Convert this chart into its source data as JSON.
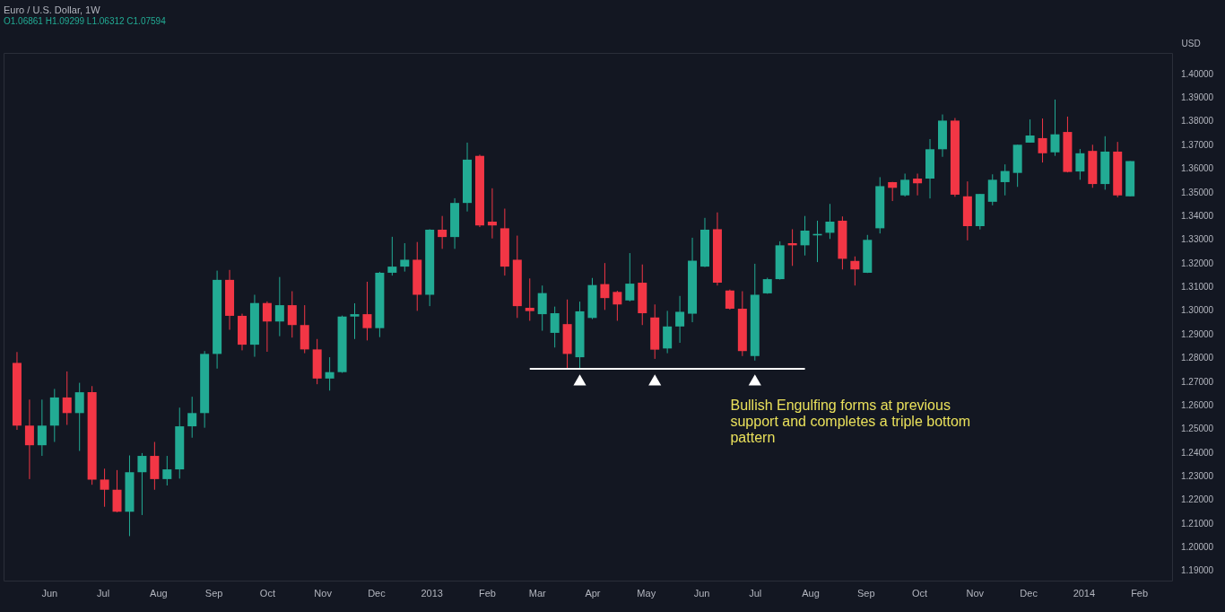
{
  "chart_data": {
    "type": "candlestick",
    "title": "Euro / U.S. Dollar, 1W",
    "subtitle": "O1.06861 H1.09299 L1.06312 C1.07594",
    "ylabel": "USD",
    "x": [
      "2012-05-14",
      "2012-05-21",
      "2012-05-28",
      "2012-06-04",
      "2012-06-11",
      "2012-06-18",
      "2012-06-25",
      "2012-07-02",
      "2012-07-09",
      "2012-07-16",
      "2012-07-23",
      "2012-07-30",
      "2012-08-06",
      "2012-08-13",
      "2012-08-20",
      "2012-08-27",
      "2012-09-03",
      "2012-09-10",
      "2012-09-17",
      "2012-09-24",
      "2012-10-01",
      "2012-10-08",
      "2012-10-15",
      "2012-10-22",
      "2012-10-29",
      "2012-11-05",
      "2012-11-12",
      "2012-11-19",
      "2012-11-26",
      "2012-12-03",
      "2012-12-10",
      "2012-12-17",
      "2012-12-24",
      "2012-12-31",
      "2013-01-07",
      "2013-01-14",
      "2013-01-21",
      "2013-01-28",
      "2013-02-04",
      "2013-02-11",
      "2013-02-18",
      "2013-02-25",
      "2013-03-04",
      "2013-03-11",
      "2013-03-18",
      "2013-03-25",
      "2013-04-01",
      "2013-04-08",
      "2013-04-15",
      "2013-04-22",
      "2013-04-29",
      "2013-05-06",
      "2013-05-13",
      "2013-05-20",
      "2013-05-27",
      "2013-06-03",
      "2013-06-10",
      "2013-06-17",
      "2013-06-24",
      "2013-07-01",
      "2013-07-08",
      "2013-07-15",
      "2013-07-22",
      "2013-07-29",
      "2013-08-05",
      "2013-08-12",
      "2013-08-19",
      "2013-08-26",
      "2013-09-02",
      "2013-09-09",
      "2013-09-16",
      "2013-09-23",
      "2013-09-30",
      "2013-10-07",
      "2013-10-14",
      "2013-10-21",
      "2013-10-28",
      "2013-11-04",
      "2013-11-11",
      "2013-11-18",
      "2013-11-25",
      "2013-12-02",
      "2013-12-09",
      "2013-12-16",
      "2013-12-23",
      "2013-12-30",
      "2014-01-06",
      "2014-01-13",
      "2014-01-20",
      "2014-01-27"
    ],
    "ohlc": [
      [
        1.278,
        1.2826,
        1.2497,
        1.2515
      ],
      [
        1.2515,
        1.2625,
        1.2289,
        1.2432
      ],
      [
        1.2432,
        1.2625,
        1.2387,
        1.2515
      ],
      [
        1.2515,
        1.267,
        1.2446,
        1.2634
      ],
      [
        1.2634,
        1.2744,
        1.2518,
        1.2568
      ],
      [
        1.2568,
        1.2696,
        1.2408,
        1.2656
      ],
      [
        1.2656,
        1.2682,
        1.2265,
        1.2287
      ],
      [
        1.2287,
        1.2333,
        1.2172,
        1.2244
      ],
      [
        1.2244,
        1.2327,
        1.2149,
        1.2151
      ],
      [
        1.2151,
        1.2389,
        1.2048,
        1.2318
      ],
      [
        1.2318,
        1.2399,
        1.2137,
        1.2387
      ],
      [
        1.2387,
        1.2446,
        1.2244,
        1.2289
      ],
      [
        1.2289,
        1.2387,
        1.2262,
        1.233
      ],
      [
        1.233,
        1.2591,
        1.2291,
        1.2512
      ],
      [
        1.2512,
        1.2637,
        1.2464,
        1.2568
      ],
      [
        1.2568,
        1.283,
        1.2506,
        1.2818
      ],
      [
        1.2818,
        1.317,
        1.2756,
        1.3131
      ],
      [
        1.3131,
        1.3173,
        1.292,
        1.2979
      ],
      [
        1.2979,
        1.2988,
        1.2833,
        1.2857
      ],
      [
        1.2857,
        1.3068,
        1.2806,
        1.3033
      ],
      [
        1.3033,
        1.304,
        1.2827,
        1.2955
      ],
      [
        1.2955,
        1.3143,
        1.2893,
        1.3024
      ],
      [
        1.3024,
        1.3083,
        1.2887,
        1.294
      ],
      [
        1.294,
        1.3024,
        1.2821,
        1.2837
      ],
      [
        1.2837,
        1.2881,
        1.269,
        1.2714
      ],
      [
        1.2714,
        1.2804,
        1.2663,
        1.2741
      ],
      [
        1.2741,
        1.298,
        1.2738,
        1.2976
      ],
      [
        1.2976,
        1.3032,
        1.2881,
        1.2986
      ],
      [
        1.2986,
        1.3123,
        1.2875,
        1.2927
      ],
      [
        1.2927,
        1.3165,
        1.2889,
        1.3161
      ],
      [
        1.3161,
        1.3313,
        1.3149,
        1.3187
      ],
      [
        1.3187,
        1.3286,
        1.3166,
        1.3216
      ],
      [
        1.3216,
        1.3291,
        1.3,
        1.3068
      ],
      [
        1.3068,
        1.3345,
        1.302,
        1.3343
      ],
      [
        1.3343,
        1.3401,
        1.3262,
        1.3312
      ],
      [
        1.3312,
        1.3476,
        1.3262,
        1.3456
      ],
      [
        1.3456,
        1.3711,
        1.342,
        1.3639
      ],
      [
        1.3655,
        1.366,
        1.3354,
        1.3361
      ],
      [
        1.3377,
        1.3518,
        1.3306,
        1.3361
      ],
      [
        1.3349,
        1.3432,
        1.3149,
        1.3187
      ],
      [
        1.3216,
        1.3318,
        1.297,
        1.302
      ],
      [
        1.3013,
        1.3137,
        1.2958,
        1.2999
      ],
      [
        1.2986,
        1.3107,
        1.2916,
        1.3075
      ],
      [
        1.2907,
        1.3018,
        1.2845,
        1.299
      ],
      [
        1.2944,
        1.3048,
        1.2758,
        1.2818
      ],
      [
        1.2804,
        1.3039,
        1.2756,
        1.2998
      ],
      [
        1.297,
        1.3139,
        1.2965,
        1.3109
      ],
      [
        1.3113,
        1.3202,
        1.3004,
        1.3054
      ],
      [
        1.308,
        1.3085,
        1.2958,
        1.3027
      ],
      [
        1.3044,
        1.3244,
        1.304,
        1.3115
      ],
      [
        1.3119,
        1.3196,
        1.294,
        1.299
      ],
      [
        1.2972,
        1.3027,
        1.2797,
        1.2836
      ],
      [
        1.2841,
        1.3,
        1.2821,
        1.2934
      ],
      [
        1.2934,
        1.3063,
        1.2865,
        1.2996
      ],
      [
        1.2988,
        1.3309,
        1.2952,
        1.3212
      ],
      [
        1.3187,
        1.3393,
        1.3185,
        1.3343
      ],
      [
        1.3345,
        1.3416,
        1.3107,
        1.3119
      ],
      [
        1.3086,
        1.309,
        1.3005,
        1.3009
      ],
      [
        1.3009,
        1.3083,
        1.2809,
        1.283
      ],
      [
        1.2809,
        1.3199,
        1.279,
        1.3068
      ],
      [
        1.3074,
        1.314,
        1.3072,
        1.3134
      ],
      [
        1.3134,
        1.3294,
        1.3132,
        1.3277
      ],
      [
        1.3286,
        1.3345,
        1.319,
        1.3277
      ],
      [
        1.3277,
        1.3401,
        1.3234,
        1.3339
      ],
      [
        1.3319,
        1.3381,
        1.3206,
        1.3325
      ],
      [
        1.333,
        1.3452,
        1.3304,
        1.3377
      ],
      [
        1.3381,
        1.3399,
        1.3175,
        1.322
      ],
      [
        1.3211,
        1.323,
        1.3107,
        1.3175
      ],
      [
        1.3161,
        1.3321,
        1.316,
        1.33
      ],
      [
        1.3349,
        1.3565,
        1.3327,
        1.3527
      ],
      [
        1.3544,
        1.3545,
        1.3464,
        1.352
      ],
      [
        1.3488,
        1.358,
        1.3483,
        1.3554
      ],
      [
        1.3559,
        1.358,
        1.3488,
        1.3539
      ],
      [
        1.3559,
        1.3726,
        1.3475,
        1.3683
      ],
      [
        1.3683,
        1.383,
        1.3651,
        1.3804
      ],
      [
        1.3804,
        1.3815,
        1.3482,
        1.3491
      ],
      [
        1.3484,
        1.3547,
        1.3298,
        1.3358
      ],
      [
        1.3358,
        1.3494,
        1.3344,
        1.3494
      ],
      [
        1.3461,
        1.3577,
        1.3446,
        1.3554
      ],
      [
        1.3544,
        1.3619,
        1.3488,
        1.3591
      ],
      [
        1.3583,
        1.3702,
        1.3524,
        1.3702
      ],
      [
        1.3711,
        1.3809,
        1.3711,
        1.3741
      ],
      [
        1.373,
        1.3813,
        1.3627,
        1.3666
      ],
      [
        1.367,
        1.3893,
        1.3655,
        1.3746
      ],
      [
        1.3756,
        1.3821,
        1.3585,
        1.3587
      ],
      [
        1.3589,
        1.3684,
        1.3554,
        1.3666
      ],
      [
        1.3676,
        1.3702,
        1.352,
        1.3536
      ],
      [
        1.3536,
        1.3738,
        1.3512,
        1.3673
      ],
      [
        1.3673,
        1.3714,
        1.348,
        1.3488
      ],
      [
        1.3484,
        1.3633,
        1.3484,
        1.3633
      ]
    ],
    "colors": [
      "#f23645",
      "#f23645",
      "#22ab94",
      "#22ab94",
      "#f23645",
      "#22ab94",
      "#f23645",
      "#f23645",
      "#f23645",
      "#22ab94",
      "#22ab94",
      "#f23645",
      "#22ab94",
      "#22ab94",
      "#22ab94",
      "#22ab94",
      "#22ab94",
      "#f23645",
      "#f23645",
      "#22ab94",
      "#f23645",
      "#22ab94",
      "#f23645",
      "#f23645",
      "#f23645",
      "#22ab94",
      "#22ab94",
      "#22ab94",
      "#f23645",
      "#22ab94",
      "#22ab94",
      "#22ab94",
      "#f23645",
      "#22ab94",
      "#f23645",
      "#22ab94",
      "#22ab94",
      "#f23645",
      "#f23645",
      "#f23645",
      "#f23645",
      "#f23645",
      "#22ab94",
      "#22ab94",
      "#f23645",
      "#22ab94",
      "#22ab94",
      "#f23645",
      "#f23645",
      "#22ab94",
      "#f23645",
      "#f23645",
      "#22ab94",
      "#22ab94",
      "#22ab94",
      "#22ab94",
      "#f23645",
      "#f23645",
      "#f23645",
      "#22ab94",
      "#22ab94",
      "#22ab94",
      "#f23645",
      "#22ab94",
      "#22ab94",
      "#22ab94",
      "#f23645",
      "#f23645",
      "#22ab94",
      "#22ab94",
      "#f23645",
      "#22ab94",
      "#f23645",
      "#22ab94",
      "#22ab94",
      "#f23645",
      "#f23645",
      "#22ab94",
      "#22ab94",
      "#22ab94",
      "#22ab94",
      "#22ab94",
      "#f23645",
      "#22ab94",
      "#f23645",
      "#22ab94",
      "#f23645",
      "#22ab94",
      "#f23645",
      "#22ab94"
    ],
    "series": [
      {
        "type": "line",
        "x": [
          "2013-02-25",
          "2013-07-29"
        ],
        "values": [
          1.2755,
          1.2755
        ],
        "color": "#ffffff"
      },
      {
        "type": "scatter",
        "marker": "triangle",
        "x": [
          "2013-03-25",
          "2013-05-06",
          "2013-07-01"
        ],
        "values": [
          1.2708,
          1.2708,
          1.2708
        ],
        "color": "#ffffff"
      }
    ],
    "annotations": [
      "Bullish Engulfing forms at previous support and completes a triple bottom pattern"
    ],
    "xlim": [
      "2012-05-09",
      "2014-02-17"
    ],
    "xticks": [
      {
        "value": "2012-06-01",
        "label": "Jun"
      },
      {
        "value": "2012-07-01",
        "label": "Jul"
      },
      {
        "value": "2012-08-01",
        "label": "Aug"
      },
      {
        "value": "2012-09-01",
        "label": "Sep"
      },
      {
        "value": "2012-10-01",
        "label": "Oct"
      },
      {
        "value": "2012-11-01",
        "label": "Nov"
      },
      {
        "value": "2012-12-01",
        "label": "Dec"
      },
      {
        "value": "2013-01-01",
        "label": "2013"
      },
      {
        "value": "2013-02-01",
        "label": "Feb"
      },
      {
        "value": "2013-03-01",
        "label": "Mar"
      },
      {
        "value": "2013-04-01",
        "label": "Apr"
      },
      {
        "value": "2013-05-01",
        "label": "May"
      },
      {
        "value": "2013-06-01",
        "label": "Jun"
      },
      {
        "value": "2013-07-01",
        "label": "Jul"
      },
      {
        "value": "2013-08-01",
        "label": "Aug"
      },
      {
        "value": "2013-09-01",
        "label": "Sep"
      },
      {
        "value": "2013-10-01",
        "label": "Oct"
      },
      {
        "value": "2013-11-01",
        "label": "Nov"
      },
      {
        "value": "2013-12-01",
        "label": "Dec"
      },
      {
        "value": "2014-01-01",
        "label": "2014"
      },
      {
        "value": "2014-02-01",
        "label": "Feb"
      }
    ],
    "ylim": [
      1.186,
      1.409
    ],
    "yticks": [
      {
        "value": 1.19,
        "label": "1.19000"
      },
      {
        "value": 1.2,
        "label": "1.20000"
      },
      {
        "value": 1.21,
        "label": "1.21000"
      },
      {
        "value": 1.22,
        "label": "1.22000"
      },
      {
        "value": 1.23,
        "label": "1.23000"
      },
      {
        "value": 1.24,
        "label": "1.24000"
      },
      {
        "value": 1.25,
        "label": "1.25000"
      },
      {
        "value": 1.26,
        "label": "1.26000"
      },
      {
        "value": 1.27,
        "label": "1.27000"
      },
      {
        "value": 1.28,
        "label": "1.28000"
      },
      {
        "value": 1.29,
        "label": "1.29000"
      },
      {
        "value": 1.3,
        "label": "1.30000"
      },
      {
        "value": 1.31,
        "label": "1.31000"
      },
      {
        "value": 1.32,
        "label": "1.32000"
      },
      {
        "value": 1.33,
        "label": "1.33000"
      },
      {
        "value": 1.34,
        "label": "1.34000"
      },
      {
        "value": 1.35,
        "label": "1.35000"
      },
      {
        "value": 1.36,
        "label": "1.36000"
      },
      {
        "value": 1.37,
        "label": "1.37000"
      },
      {
        "value": 1.38,
        "label": "1.38000"
      },
      {
        "value": 1.39,
        "label": "1.39000"
      },
      {
        "value": 1.4,
        "label": "1.40000"
      }
    ]
  }
}
